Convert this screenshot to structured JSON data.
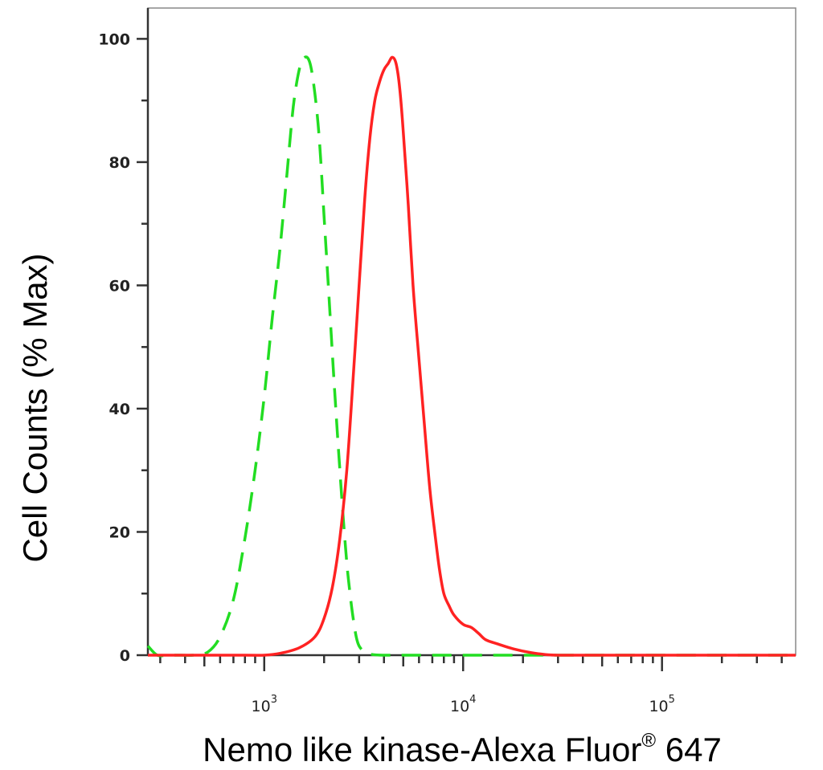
{
  "chart_data": {
    "type": "line",
    "xlabel": "Nemo like kinase-Alexa Fluor",
    "xlabel_mark": "®",
    "xlabel_suffix": " 647",
    "ylabel": "Cell Counts (% Max)",
    "xscale": "log",
    "xlim": [
      260,
      470000
    ],
    "ylim": [
      0,
      105
    ],
    "y_ticks": [
      {
        "value": 0,
        "label": "0"
      },
      {
        "value": 20,
        "label": "20"
      },
      {
        "value": 40,
        "label": "40"
      },
      {
        "value": 60,
        "label": "60"
      },
      {
        "value": 80,
        "label": "80"
      },
      {
        "value": 100,
        "label": "100"
      }
    ],
    "x_ticks": [
      {
        "value": 1000,
        "base": "10",
        "exp": "3"
      },
      {
        "value": 10000,
        "base": "10",
        "exp": "4"
      },
      {
        "value": 100000,
        "base": "10",
        "exp": "5"
      }
    ],
    "grid": false,
    "series": [
      {
        "color": "#22dd22",
        "dash": "dashed",
        "x": [
          260,
          290,
          330,
          380,
          440,
          520,
          600,
          700,
          800,
          900,
          1000,
          1100,
          1200,
          1300,
          1400,
          1500,
          1600,
          1700,
          1800,
          1900,
          2000,
          2100,
          2200,
          2300,
          2400,
          2500,
          2600,
          2700,
          2800,
          2900,
          3000,
          3200,
          3500,
          4000,
          5000,
          7000,
          10000,
          20000,
          50000,
          470000
        ],
        "y": [
          1.5,
          0,
          0,
          0,
          0,
          0.5,
          3,
          9,
          19,
          30,
          42,
          55,
          66,
          78,
          89,
          95,
          97,
          96,
          91,
          83,
          71,
          60,
          49,
          39,
          30,
          22,
          15,
          10,
          6,
          3,
          1.5,
          0.5,
          0.1,
          0,
          0,
          0,
          0,
          0,
          0,
          0
        ]
      },
      {
        "color": "#ff2222",
        "dash": "solid",
        "x": [
          260,
          800,
          1000,
          1200,
          1500,
          1800,
          2000,
          2200,
          2400,
          2600,
          2800,
          3000,
          3200,
          3400,
          3600,
          3800,
          4000,
          4200,
          4400,
          4600,
          4800,
          5000,
          5300,
          5600,
          6000,
          6400,
          6800,
          7200,
          7600,
          8000,
          8500,
          9000,
          10000,
          11000,
          12000,
          13000,
          15000,
          18000,
          22000,
          26000,
          30000,
          50000,
          100000,
          470000
        ],
        "y": [
          0,
          0,
          0,
          0.3,
          1.2,
          3,
          6,
          11,
          19,
          30,
          45,
          60,
          74,
          84,
          90,
          93,
          95,
          96,
          97,
          96,
          92,
          85,
          73,
          60,
          48,
          37,
          27,
          20,
          14,
          10,
          8,
          6.5,
          5,
          4.5,
          3.5,
          2.5,
          1.8,
          1,
          0.4,
          0.1,
          0,
          0,
          0,
          0
        ]
      }
    ]
  }
}
